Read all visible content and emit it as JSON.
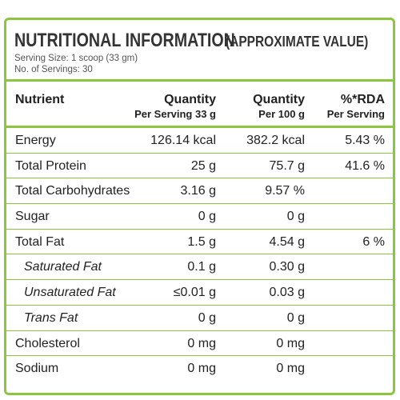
{
  "header": {
    "title_main": "NUTRITIONAL INFORMATION",
    "title_sub": "(APPROXIMATE VALUE)",
    "serving_size": "Serving Size: 1 scoop (33 gm)",
    "servings_count": "No. of Servings: 30"
  },
  "columns": {
    "nutrient": "Nutrient",
    "q1_line1": "Quantity",
    "q1_line2": "Per Serving 33 g",
    "q2_line1": "Quantity",
    "q2_line2": "Per 100 g",
    "rda_line1": "%*RDA",
    "rda_line2": "Per Serving"
  },
  "rows": [
    {
      "name": "Energy",
      "per_serving": "126.14 kcal",
      "per_100g": "382.2 kcal",
      "rda": "5.43 %"
    },
    {
      "name": "Total Protein",
      "per_serving": "25 g",
      "per_100g": "75.7 g",
      "rda": "41.6 %"
    },
    {
      "name": "Total Carbohydrates",
      "per_serving": "3.16 g",
      "per_100g": "9.57 %",
      "rda": ""
    },
    {
      "name": "Sugar",
      "per_serving": "0 g",
      "per_100g": "0 g",
      "rda": ""
    },
    {
      "name": "Total Fat",
      "per_serving": "1.5 g",
      "per_100g": "4.54 g",
      "rda": "6 %"
    },
    {
      "name": "Saturated Fat",
      "per_serving": "0.1 g",
      "per_100g": "0.30 g",
      "rda": ""
    },
    {
      "name": "Unsaturated Fat",
      "per_serving": "≤0.01 g",
      "per_100g": "0.03 g",
      "rda": ""
    },
    {
      "name": "Trans Fat",
      "per_serving": "0 g",
      "per_100g": "0 g",
      "rda": ""
    },
    {
      "name": "Cholesterol",
      "per_serving": "0 mg",
      "per_100g": "0 mg",
      "rda": ""
    },
    {
      "name": "Sodium",
      "per_serving": "0 mg",
      "per_100g": "0 mg",
      "rda": ""
    }
  ],
  "colors": {
    "border": "#8cc63f",
    "text": "#222222"
  }
}
